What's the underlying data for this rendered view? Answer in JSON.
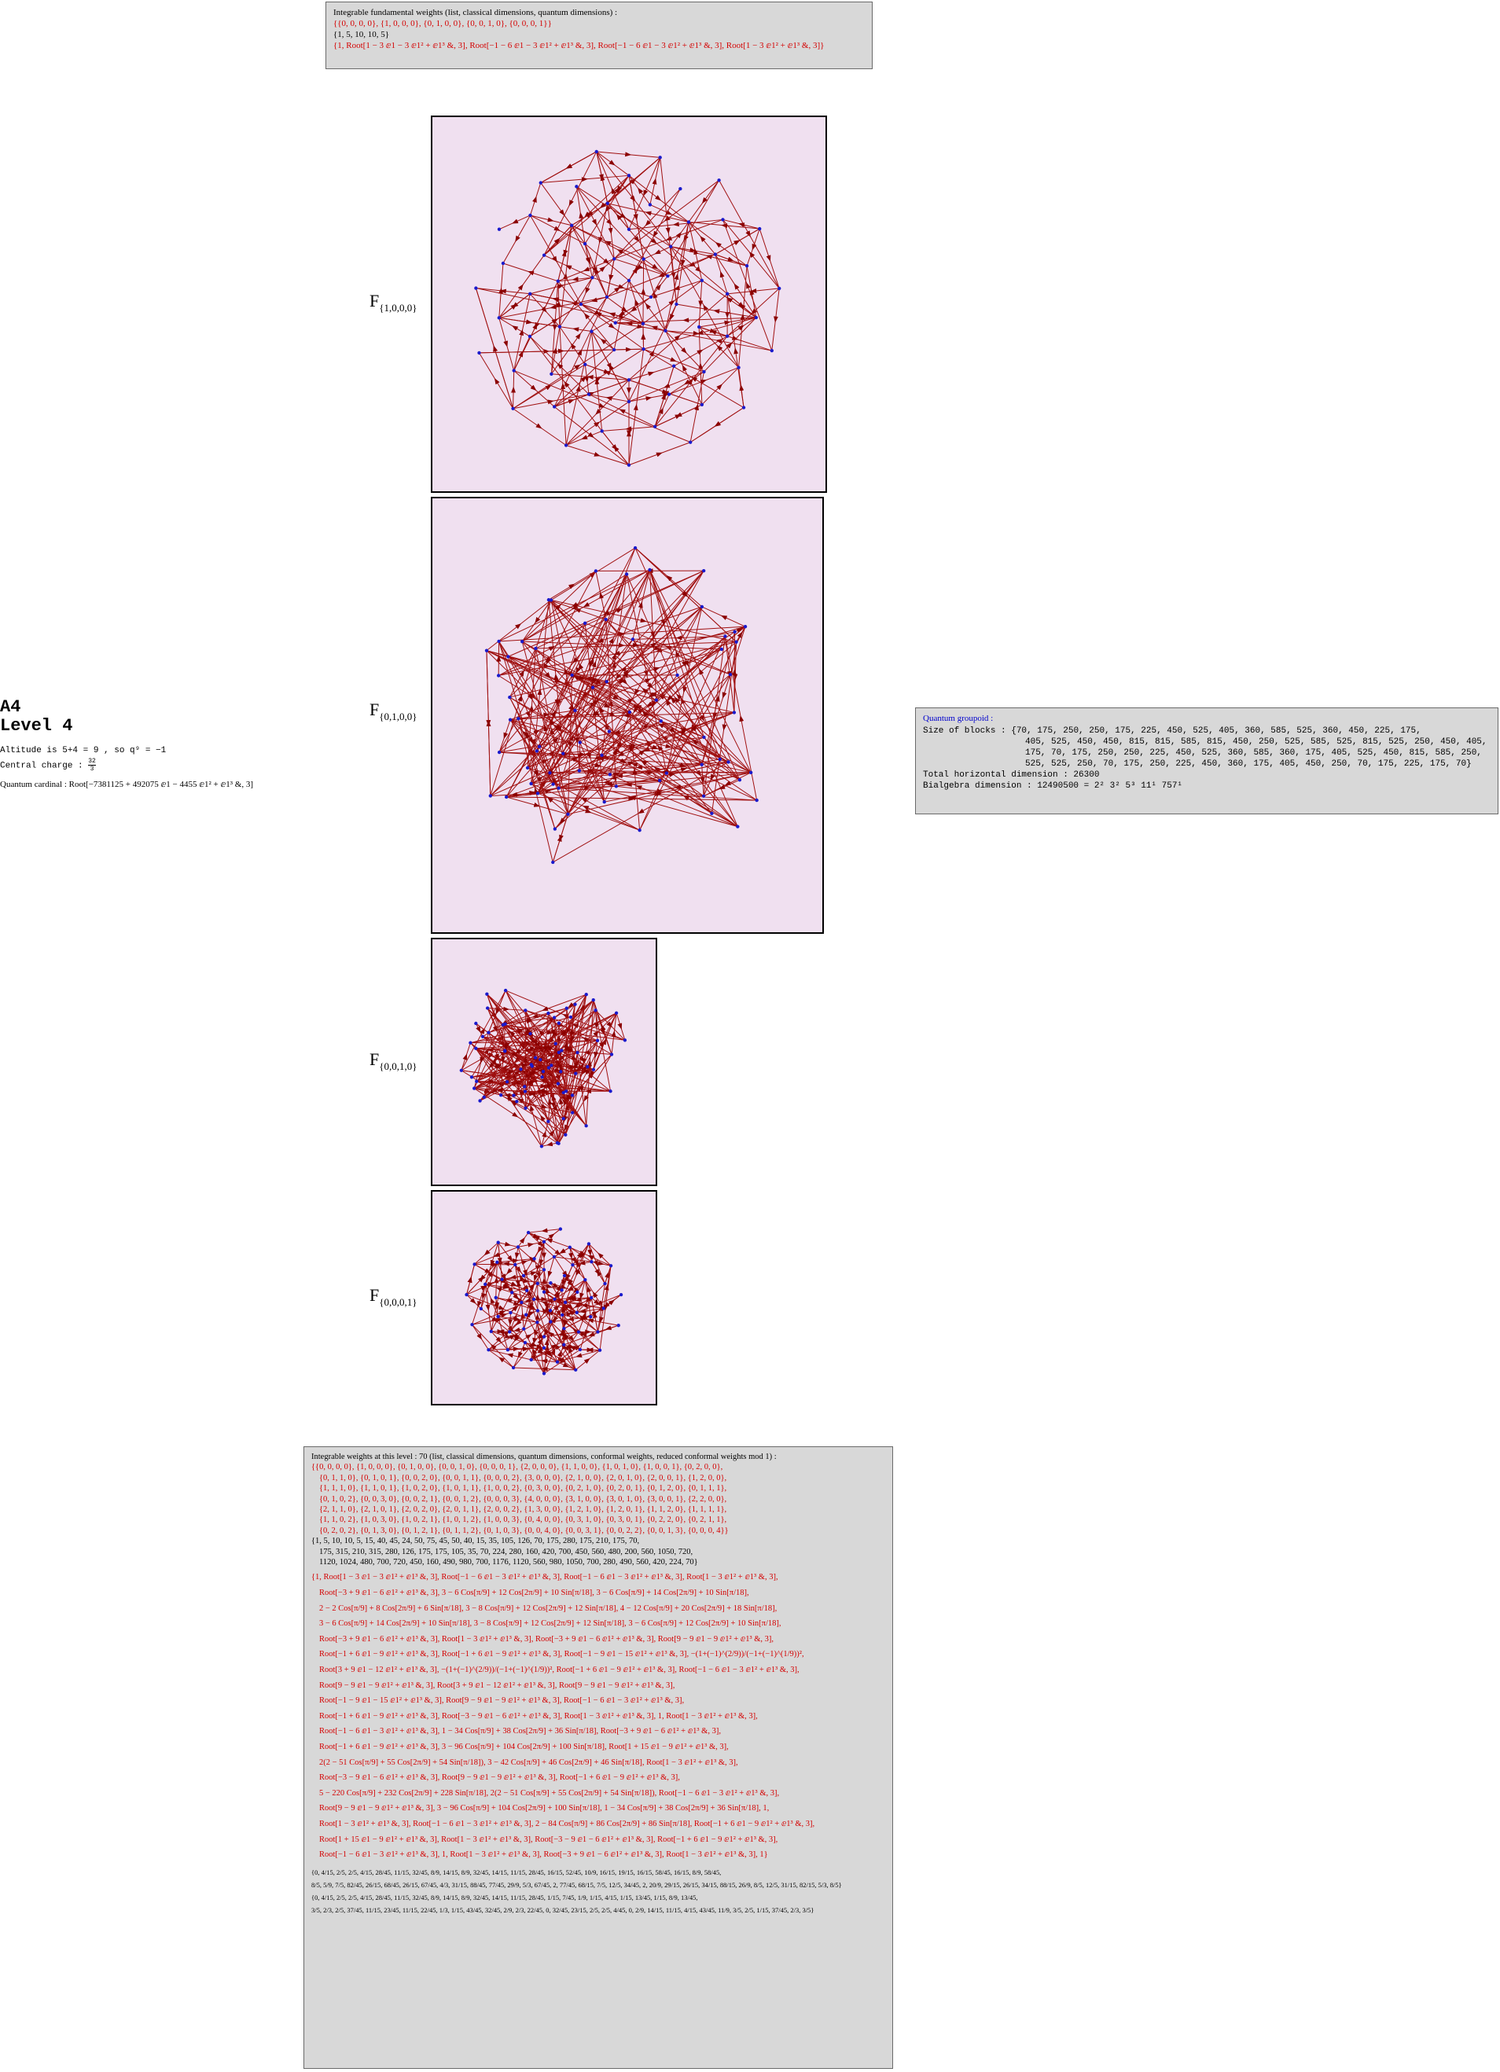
{
  "top_cell": {
    "heading": "Integrable fundamental weights (list, classical dimensions, quantum dimensions) :",
    "weights": "{{0, 0, 0, 0}, {1, 0, 0, 0}, {0, 1, 0, 0}, {0, 0, 1, 0}, {0, 0, 0, 1}}",
    "dims": "{1, 5, 10, 10, 5}",
    "qdims": "{1, Root[1 − 3 ⅇ1 − 3 ⅇ1² + ⅇ1³ &, 3], Root[−1 − 6 ⅇ1 − 3 ⅇ1² + ⅇ1³ &, 3], Root[−1 − 6 ⅇ1 − 3 ⅇ1² + ⅇ1³ &, 3], Root[1 − 3 ⅇ1² + ⅇ1³ &, 3]}"
  },
  "left_info": {
    "title": "A4",
    "level": "Level 4",
    "altitude": "Altitude is 5+4 = 9 , so q⁹ = −1",
    "central_charge_label": "Central charge :",
    "central_charge_num": "32",
    "central_charge_den": "3",
    "quantum_cardinal": "Quantum cardinal : Root[−7381125 + 492075 ⅇ1 − 4455 ⅇ1² + ⅇ1³ &, 3]"
  },
  "graphs": [
    {
      "label": "F",
      "sub": "{1,0,0,0}"
    },
    {
      "label": "F",
      "sub": "{0,1,0,0}"
    },
    {
      "label": "F",
      "sub": "{0,0,1,0}"
    },
    {
      "label": "F",
      "sub": "{0,0,0,1}"
    }
  ],
  "groupoid": {
    "title": "Quantum groupoid :",
    "blocks_label": "Size of blocks :",
    "blocks_1": "{70, 175, 250, 250, 175, 225, 450, 525, 405, 360, 585, 525, 360, 450, 225, 175,",
    "blocks_2": "405, 525, 450, 450, 815, 815, 585, 815, 450, 250, 525, 585, 525, 815, 525, 250, 450, 405,",
    "blocks_3": "175, 70, 175, 250, 250, 225, 450, 525, 360, 585, 360, 175, 405, 525, 450, 815, 585, 250,",
    "blocks_4": "525, 525, 250, 70, 175, 250, 225, 450, 360, 175, 405, 450, 250, 70, 175, 225, 175, 70}",
    "horizontal": "Total horizontal dimension : 26300",
    "bialgebra": "Bialgebra dimension : 12490500 = 2² 3² 5³ 11¹ 757¹"
  },
  "bottom_cell": {
    "heading": "Integrable weights at this level : 70 (list, classical dimensions, quantum dimensions, conformal weights, reduced conformal weights mod 1) :",
    "weights": [
      "{{0, 0, 0, 0}, {1, 0, 0, 0}, {0, 1, 0, 0}, {0, 0, 1, 0}, {0, 0, 0, 1}, {2, 0, 0, 0}, {1, 1, 0, 0}, {1, 0, 1, 0}, {1, 0, 0, 1}, {0, 2, 0, 0},",
      "{0, 1, 1, 0}, {0, 1, 0, 1}, {0, 0, 2, 0}, {0, 0, 1, 1}, {0, 0, 0, 2}, {3, 0, 0, 0}, {2, 1, 0, 0}, {2, 0, 1, 0}, {2, 0, 0, 1}, {1, 2, 0, 0},",
      "{1, 1, 1, 0}, {1, 1, 0, 1}, {1, 0, 2, 0}, {1, 0, 1, 1}, {1, 0, 0, 2}, {0, 3, 0, 0}, {0, 2, 1, 0}, {0, 2, 0, 1}, {0, 1, 2, 0}, {0, 1, 1, 1},",
      "{0, 1, 0, 2}, {0, 0, 3, 0}, {0, 0, 2, 1}, {0, 0, 1, 2}, {0, 0, 0, 3}, {4, 0, 0, 0}, {3, 1, 0, 0}, {3, 0, 1, 0}, {3, 0, 0, 1}, {2, 2, 0, 0},",
      "{2, 1, 1, 0}, {2, 1, 0, 1}, {2, 0, 2, 0}, {2, 0, 1, 1}, {2, 0, 0, 2}, {1, 3, 0, 0}, {1, 2, 1, 0}, {1, 2, 0, 1}, {1, 1, 2, 0}, {1, 1, 1, 1},",
      "{1, 1, 0, 2}, {1, 0, 3, 0}, {1, 0, 2, 1}, {1, 0, 1, 2}, {1, 0, 0, 3}, {0, 4, 0, 0}, {0, 3, 1, 0}, {0, 3, 0, 1}, {0, 2, 2, 0}, {0, 2, 1, 1},",
      "{0, 2, 0, 2}, {0, 1, 3, 0}, {0, 1, 2, 1}, {0, 1, 1, 2}, {0, 1, 0, 3}, {0, 0, 4, 0}, {0, 0, 3, 1}, {0, 0, 2, 2}, {0, 0, 1, 3}, {0, 0, 0, 4}}"
    ],
    "dims": [
      "{1, 5, 10, 10, 5, 15, 40, 45, 24, 50, 75, 45, 50, 40, 15, 35, 105, 126, 70, 175, 280, 175, 210, 175, 70,",
      "175, 315, 210, 315, 280, 126, 175, 175, 105, 35, 70, 224, 280, 160, 420, 700, 450, 560, 480, 200, 560, 1050, 720,",
      "1120, 1024, 480, 700, 720, 450, 160, 490, 980, 700, 1176, 1120, 560, 980, 1050, 700, 280, 490, 560, 420, 224, 70}"
    ],
    "qdims": [
      "{1, Root[1 − 3 ⅇ1 − 3 ⅇ1² + ⅇ1³ &, 3], Root[−1 − 6 ⅇ1 − 3 ⅇ1² + ⅇ1³ &, 3], Root[−1 − 6 ⅇ1 − 3 ⅇ1² + ⅇ1³ &, 3], Root[1 − 3 ⅇ1² + ⅇ1³ &, 3],",
      "Root[−3 + 9 ⅇ1 − 6 ⅇ1² + ⅇ1³ &, 3], 3 − 6 Cos[π/9] + 12 Cos[2π/9] + 10 Sin[π/18], 3 − 6 Cos[π/9] + 14 Cos[2π/9] + 10 Sin[π/18],",
      "2 − 2 Cos[π/9] + 8 Cos[2π/9] + 6 Sin[π/18], 3 − 8 Cos[π/9] + 12 Cos[2π/9] + 12 Sin[π/18], 4 − 12 Cos[π/9] + 20 Cos[2π/9] + 18 Sin[π/18],",
      "3 − 6 Cos[π/9] + 14 Cos[2π/9] + 10 Sin[π/18], 3 − 8 Cos[π/9] + 12 Cos[2π/9] + 12 Sin[π/18], 3 − 6 Cos[π/9] + 12 Cos[2π/9] + 10 Sin[π/18],",
      "Root[−3 + 9 ⅇ1 − 6 ⅇ1² + ⅇ1³ &, 3], Root[1 − 3 ⅇ1² + ⅇ1³ &, 3], Root[−3 + 9 ⅇ1 − 6 ⅇ1² + ⅇ1³ &, 3], Root[9 − 9 ⅇ1 − 9 ⅇ1² + ⅇ1³ &, 3],",
      "Root[−1 + 6 ⅇ1 − 9 ⅇ1² + ⅇ1³ &, 3], Root[−1 + 6 ⅇ1 − 9 ⅇ1² + ⅇ1³ &, 3], Root[−1 − 9 ⅇ1 − 15 ⅇ1² + ⅇ1³ &, 3], −(1+(−1)^(2/9))/(−1+(−1)^(1/9))²,",
      "Root[3 + 9 ⅇ1 − 12 ⅇ1² + ⅇ1³ &, 3], −(1+(−1)^(2/9))/(−1+(−1)^(1/9))², Root[−1 + 6 ⅇ1 − 9 ⅇ1² + ⅇ1³ &, 3], Root[−1 − 6 ⅇ1 − 3 ⅇ1² + ⅇ1³ &, 3],",
      "Root[9 − 9 ⅇ1 − 9 ⅇ1² + ⅇ1³ &, 3], Root[3 + 9 ⅇ1 − 12 ⅇ1² + ⅇ1³ &, 3], Root[9 − 9 ⅇ1 − 9 ⅇ1² + ⅇ1³ &, 3],",
      "Root[−1 − 9 ⅇ1 − 15 ⅇ1² + ⅇ1³ &, 3], Root[9 − 9 ⅇ1 − 9 ⅇ1² + ⅇ1³ &, 3], Root[−1 − 6 ⅇ1 − 3 ⅇ1² + ⅇ1³ &, 3],",
      "Root[−1 + 6 ⅇ1 − 9 ⅇ1² + ⅇ1³ &, 3], Root[−3 − 9 ⅇ1 − 6 ⅇ1² + ⅇ1³ &, 3], Root[1 − 3 ⅇ1² + ⅇ1³ &, 3], 1, Root[1 − 3 ⅇ1² + ⅇ1³ &, 3],",
      "Root[−1 − 6 ⅇ1 − 3 ⅇ1² + ⅇ1³ &, 3], 1 − 34 Cos[π/9] + 38 Cos[2π/9] + 36 Sin[π/18], Root[−3 + 9 ⅇ1 − 6 ⅇ1² + ⅇ1³ &, 3],",
      "Root[−1 + 6 ⅇ1 − 9 ⅇ1² + ⅇ1³ &, 3], 3 − 96 Cos[π/9] + 104 Cos[2π/9] + 100 Sin[π/18], Root[1 + 15 ⅇ1 − 9 ⅇ1² + ⅇ1³ &, 3],",
      "2(2 − 51 Cos[π/9] + 55 Cos[2π/9] + 54 Sin[π/18]), 3 − 42 Cos[π/9] + 46 Cos[2π/9] + 46 Sin[π/18], Root[1 − 3 ⅇ1² + ⅇ1³ &, 3],",
      "Root[−3 − 9 ⅇ1 − 6 ⅇ1² + ⅇ1³ &, 3], Root[9 − 9 ⅇ1 − 9 ⅇ1² + ⅇ1³ &, 3], Root[−1 + 6 ⅇ1 − 9 ⅇ1² + ⅇ1³ &, 3],",
      "5 − 220 Cos[π/9] + 232 Cos[2π/9] + 228 Sin[π/18], 2(2 − 51 Cos[π/9] + 55 Cos[2π/9] + 54 Sin[π/18]), Root[−1 − 6 ⅇ1 − 3 ⅇ1² + ⅇ1³ &, 3],",
      "Root[9 − 9 ⅇ1 − 9 ⅇ1² + ⅇ1³ &, 3], 3 − 96 Cos[π/9] + 104 Cos[2π/9] + 100 Sin[π/18], 1 − 34 Cos[π/9] + 38 Cos[2π/9] + 36 Sin[π/18], 1,",
      "Root[1 − 3 ⅇ1² + ⅇ1³ &, 3], Root[−1 − 6 ⅇ1 − 3 ⅇ1² + ⅇ1³ &, 3], 2 − 84 Cos[π/9] + 86 Cos[2π/9] + 86 Sin[π/18], Root[−1 + 6 ⅇ1 − 9 ⅇ1² + ⅇ1³ &, 3],",
      "Root[1 + 15 ⅇ1 − 9 ⅇ1² + ⅇ1³ &, 3], Root[1 − 3 ⅇ1² + ⅇ1³ &, 3], Root[−3 − 9 ⅇ1 − 6 ⅇ1² + ⅇ1³ &, 3], Root[−1 + 6 ⅇ1 − 9 ⅇ1² + ⅇ1³ &, 3],",
      "Root[−1 − 6 ⅇ1 − 3 ⅇ1² + ⅇ1³ &, 3], 1, Root[1 − 3 ⅇ1² + ⅇ1³ &, 3], Root[−3 + 9 ⅇ1 − 6 ⅇ1² + ⅇ1³ &, 3], Root[1 − 3 ⅇ1² + ⅇ1³ &, 3], 1}"
    ],
    "conformal": [
      "{0, 4/15, 2/5, 2/5, 4/15, 28/45, 11/15, 32/45, 8/9, 14/15, 8/9, 32/45, 14/15, 11/15, 28/45, 16/15, 52/45, 10/9, 16/15, 19/15, 16/15, 58/45, 16/15, 8/9, 58/45,",
      "8/5, 5/9, 7/5, 82/45, 26/15, 68/45, 26/15, 67/45, 4/3, 31/15, 88/45, 77/45, 29/9, 5/3, 67/45, 2, 77/45, 68/15, 7/5, 12/5, 34/45, 2, 20/9, 29/15, 26/15, 34/15, 88/15, 26/9, 8/5, 12/5, 31/15, 82/15, 5/3, 8/5}",
      "{0, 4/15, 2/5, 2/5, 4/15, 28/45, 11/15, 32/45, 8/9, 14/15, 8/9, 32/45, 14/15, 11/15, 28/45, 1/15, 7/45, 1/9, 1/15, 4/15, 1/15, 13/45, 1/15, 8/9, 13/45,",
      "3/5, 2/3, 2/5, 37/45, 11/15, 23/45, 11/15, 22/45, 1/3, 1/15, 43/45, 32/45, 2/9, 2/3, 22/45, 0, 32/45, 23/15, 2/5, 2/5, 4/45, 0, 2/9, 14/15, 11/15, 4/15, 43/45, 11/9, 3/5, 2/5, 1/15, 37/45, 2/3, 3/5}"
    ]
  }
}
